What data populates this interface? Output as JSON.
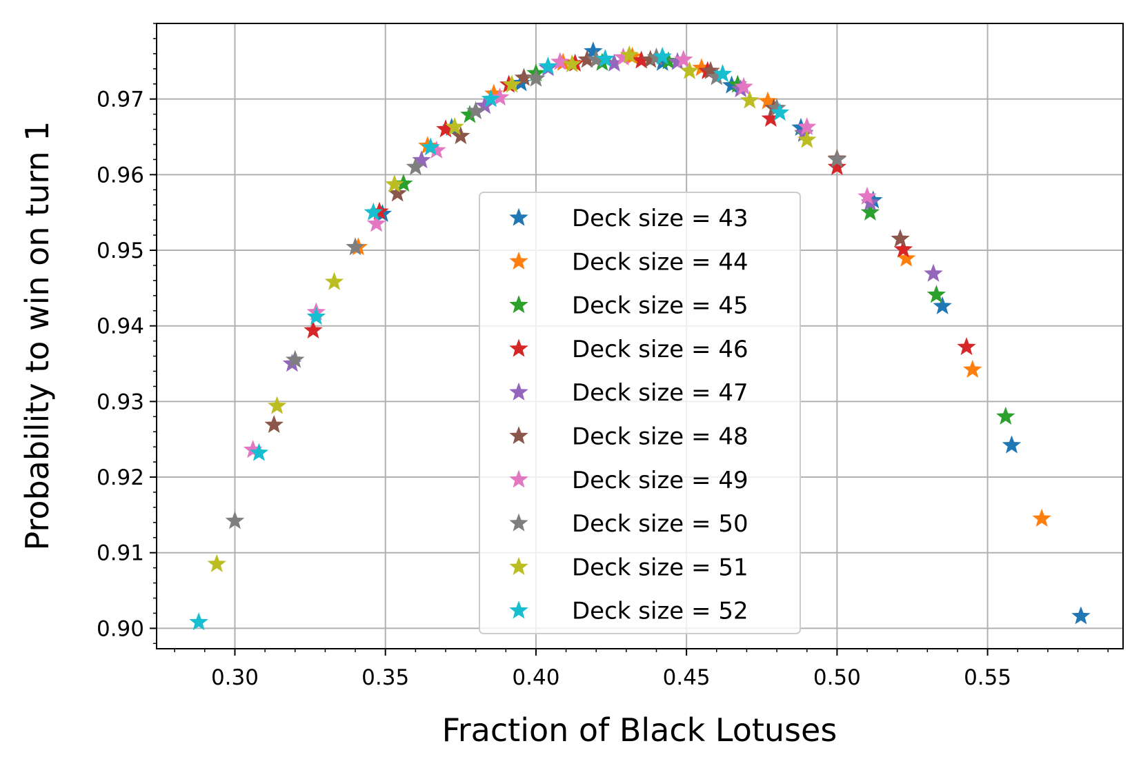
{
  "chart_data": {
    "type": "scatter",
    "marker": "star",
    "xlabel": "Fraction of Black Lotuses",
    "ylabel": "Probability to win on turn 1",
    "xlim": [
      0.274,
      0.595
    ],
    "ylim": [
      0.8973,
      0.98
    ],
    "xticks": [
      0.3,
      0.35,
      0.4,
      0.45,
      0.5,
      0.55
    ],
    "xtick_labels": [
      "0.30",
      "0.35",
      "0.40",
      "0.45",
      "0.50",
      "0.55"
    ],
    "yticks": [
      0.9,
      0.91,
      0.92,
      0.93,
      0.94,
      0.95,
      0.96,
      0.97
    ],
    "ytick_labels": [
      "0.90",
      "0.91",
      "0.92",
      "0.93",
      "0.94",
      "0.95",
      "0.96",
      "0.97"
    ],
    "x_minor_step": 0.01,
    "y_minor_step": 0.002,
    "grid": true,
    "legend_position": "center",
    "series": [
      {
        "name": "Deck size = 43",
        "color": "#1f77b4",
        "points": [
          [
            0.349,
            0.9548
          ],
          [
            0.372,
            0.9662
          ],
          [
            0.395,
            0.9721
          ],
          [
            0.419,
            0.9763
          ],
          [
            0.442,
            0.9748
          ],
          [
            0.465,
            0.9718
          ],
          [
            0.488,
            0.9662
          ],
          [
            0.512,
            0.9566
          ],
          [
            0.535,
            0.9426
          ],
          [
            0.558,
            0.9242
          ],
          [
            0.581,
            0.9016
          ]
        ]
      },
      {
        "name": "Deck size = 44",
        "color": "#ff7f0e",
        "points": [
          [
            0.341,
            0.9504
          ],
          [
            0.364,
            0.9638
          ],
          [
            0.386,
            0.9707
          ],
          [
            0.409,
            0.9748
          ],
          [
            0.432,
            0.9756
          ],
          [
            0.455,
            0.9741
          ],
          [
            0.477,
            0.9697
          ],
          [
            0.5,
            0.9621
          ],
          [
            0.523,
            0.9489
          ],
          [
            0.545,
            0.9342
          ],
          [
            0.568,
            0.9145
          ]
        ]
      },
      {
        "name": "Deck size = 45",
        "color": "#2ca02c",
        "points": [
          [
            0.356,
            0.9588
          ],
          [
            0.378,
            0.9679
          ],
          [
            0.4,
            0.9734
          ],
          [
            0.422,
            0.9748
          ],
          [
            0.444,
            0.975
          ],
          [
            0.467,
            0.9719
          ],
          [
            0.489,
            0.9654
          ],
          [
            0.511,
            0.955
          ],
          [
            0.533,
            0.9441
          ],
          [
            0.556,
            0.928
          ]
        ]
      },
      {
        "name": "Deck size = 46",
        "color": "#d62728",
        "points": [
          [
            0.326,
            0.9394
          ],
          [
            0.348,
            0.9551
          ],
          [
            0.37,
            0.966
          ],
          [
            0.391,
            0.9719
          ],
          [
            0.413,
            0.9747
          ],
          [
            0.435,
            0.9751
          ],
          [
            0.457,
            0.9737
          ],
          [
            0.478,
            0.9674
          ],
          [
            0.5,
            0.961
          ],
          [
            0.522,
            0.9501
          ],
          [
            0.543,
            0.9372
          ]
        ]
      },
      {
        "name": "Deck size = 47",
        "color": "#9467bd",
        "points": [
          [
            0.319,
            0.935
          ],
          [
            0.362,
            0.9619
          ],
          [
            0.383,
            0.9691
          ],
          [
            0.404,
            0.9741
          ],
          [
            0.426,
            0.9747
          ],
          [
            0.447,
            0.9749
          ],
          [
            0.468,
            0.9713
          ],
          [
            0.489,
            0.9655
          ],
          [
            0.511,
            0.9563
          ],
          [
            0.532,
            0.9469
          ]
        ]
      },
      {
        "name": "Deck size = 48",
        "color": "#8c564b",
        "points": [
          [
            0.313,
            0.9269
          ],
          [
            0.354,
            0.9575
          ],
          [
            0.375,
            0.9651
          ],
          [
            0.396,
            0.9728
          ],
          [
            0.417,
            0.9752
          ],
          [
            0.438,
            0.9752
          ],
          [
            0.458,
            0.9737
          ],
          [
            0.479,
            0.9688
          ],
          [
            0.5,
            0.9621
          ],
          [
            0.521,
            0.9515
          ]
        ]
      },
      {
        "name": "Deck size = 49",
        "color": "#e377c2",
        "points": [
          [
            0.306,
            0.9236
          ],
          [
            0.327,
            0.9418
          ],
          [
            0.347,
            0.9535
          ],
          [
            0.367,
            0.9632
          ],
          [
            0.388,
            0.9702
          ],
          [
            0.408,
            0.9749
          ],
          [
            0.429,
            0.9755
          ],
          [
            0.449,
            0.9752
          ],
          [
            0.469,
            0.9716
          ],
          [
            0.49,
            0.9663
          ],
          [
            0.51,
            0.9571
          ]
        ]
      },
      {
        "name": "Deck size = 50",
        "color": "#7f7f7f",
        "points": [
          [
            0.3,
            0.9142
          ],
          [
            0.32,
            0.9355
          ],
          [
            0.34,
            0.9504
          ],
          [
            0.36,
            0.961
          ],
          [
            0.38,
            0.9684
          ],
          [
            0.4,
            0.9727
          ],
          [
            0.42,
            0.9752
          ],
          [
            0.44,
            0.9755
          ],
          [
            0.46,
            0.9729
          ],
          [
            0.48,
            0.9688
          ],
          [
            0.5,
            0.962
          ]
        ]
      },
      {
        "name": "Deck size = 51",
        "color": "#bcbd22",
        "points": [
          [
            0.294,
            0.9085
          ],
          [
            0.314,
            0.9294
          ],
          [
            0.333,
            0.9458
          ],
          [
            0.353,
            0.9587
          ],
          [
            0.373,
            0.9663
          ],
          [
            0.392,
            0.9719
          ],
          [
            0.412,
            0.9746
          ],
          [
            0.431,
            0.9758
          ],
          [
            0.451,
            0.9737
          ],
          [
            0.471,
            0.9698
          ],
          [
            0.49,
            0.9646
          ]
        ]
      },
      {
        "name": "Deck size = 52",
        "color": "#17becf",
        "points": [
          [
            0.288,
            0.9008
          ],
          [
            0.308,
            0.9232
          ],
          [
            0.327,
            0.9412
          ],
          [
            0.346,
            0.955
          ],
          [
            0.365,
            0.9636
          ],
          [
            0.385,
            0.97
          ],
          [
            0.404,
            0.9743
          ],
          [
            0.423,
            0.9753
          ],
          [
            0.442,
            0.9756
          ],
          [
            0.462,
            0.9733
          ],
          [
            0.481,
            0.9682
          ]
        ]
      }
    ]
  }
}
